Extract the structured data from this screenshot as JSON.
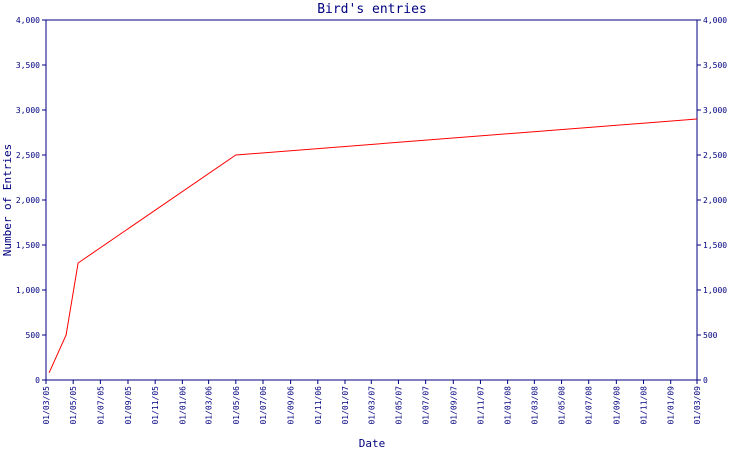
{
  "chart_data": {
    "type": "line",
    "title": "Bird's entries",
    "xlabel": "Date",
    "ylabel": "Number of Entries",
    "x_ticks": [
      "01/03/05",
      "01/05/05",
      "01/07/05",
      "01/09/05",
      "01/11/05",
      "01/01/06",
      "01/03/06",
      "01/05/06",
      "01/07/06",
      "01/09/06",
      "01/11/06",
      "01/01/07",
      "01/03/07",
      "01/05/07",
      "01/07/07",
      "01/09/07",
      "01/11/07",
      "01/01/08",
      "01/03/08",
      "01/05/08",
      "01/07/08",
      "01/09/08",
      "01/11/08",
      "01/01/09",
      "01/03/09"
    ],
    "y_ticks": [
      "0",
      "500",
      "1,000",
      "1,500",
      "2,000",
      "2,500",
      "3,000",
      "3,500",
      "4,000"
    ],
    "ylim": [
      0,
      4000
    ],
    "y_axis_both_sides": true,
    "grid": false,
    "series": [
      {
        "color": "#ff0000",
        "x": [
          "2005-03-08",
          "2005-04-15",
          "2005-05-12",
          "2006-05-01",
          "2009-03-01"
        ],
        "y": [
          80,
          500,
          1300,
          2500,
          2900
        ]
      }
    ]
  }
}
